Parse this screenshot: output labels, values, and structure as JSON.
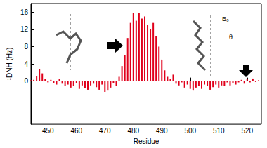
{
  "chart_data": {
    "type": "bar",
    "xlabel": "Residue",
    "ylabel": "¹DNH (Hz)",
    "x": [
      444,
      445,
      446,
      447,
      448,
      449,
      450,
      451,
      452,
      453,
      454,
      455,
      456,
      457,
      458,
      459,
      460,
      461,
      462,
      463,
      464,
      465,
      466,
      467,
      468,
      469,
      470,
      471,
      472,
      473,
      474,
      475,
      476,
      477,
      478,
      479,
      480,
      481,
      482,
      483,
      484,
      485,
      486,
      487,
      488,
      489,
      490,
      491,
      492,
      493,
      494,
      495,
      496,
      497,
      498,
      499,
      500,
      501,
      502,
      503,
      504,
      505,
      506,
      507,
      508,
      509,
      510,
      511,
      512,
      513,
      514,
      515,
      516,
      517,
      518,
      519,
      520,
      521,
      522,
      523,
      524
    ],
    "values": [
      0.2,
      0.3,
      1.2,
      2.8,
      1.8,
      0.5,
      -0.3,
      0.3,
      -0.5,
      -0.8,
      0.5,
      -0.6,
      -1.2,
      -0.8,
      -1.5,
      -1.2,
      -0.5,
      -1.8,
      -1.0,
      -1.6,
      -2.0,
      -1.0,
      -0.6,
      -1.4,
      -2.0,
      -0.8,
      -2.5,
      -2.2,
      -1.5,
      -0.5,
      -1.2,
      1.0,
      3.5,
      6.0,
      10.0,
      13.5,
      15.8,
      14.0,
      15.8,
      14.5,
      15.0,
      13.0,
      12.0,
      13.5,
      10.5,
      8.0,
      5.0,
      2.5,
      1.0,
      0.5,
      1.5,
      -0.6,
      -1.0,
      -0.3,
      -1.5,
      -0.8,
      -1.8,
      -2.2,
      -1.5,
      -1.2,
      -1.8,
      -0.8,
      -1.2,
      -2.0,
      -1.4,
      -0.8,
      -1.5,
      -1.0,
      -1.2,
      -0.3,
      -1.0,
      -0.5,
      -0.8,
      -0.3,
      0.3,
      -0.6,
      0.5,
      -0.3,
      0.6,
      -0.2,
      0.2
    ],
    "color": "#e0001b",
    "xlim": [
      444,
      525
    ],
    "xticks": [
      450,
      460,
      470,
      480,
      490,
      500,
      510,
      520
    ],
    "ylim": [
      -10,
      18
    ],
    "yticks": [
      0,
      4,
      8,
      12,
      16
    ],
    "grid": false,
    "annotations": [
      "B₀",
      "θ"
    ]
  }
}
